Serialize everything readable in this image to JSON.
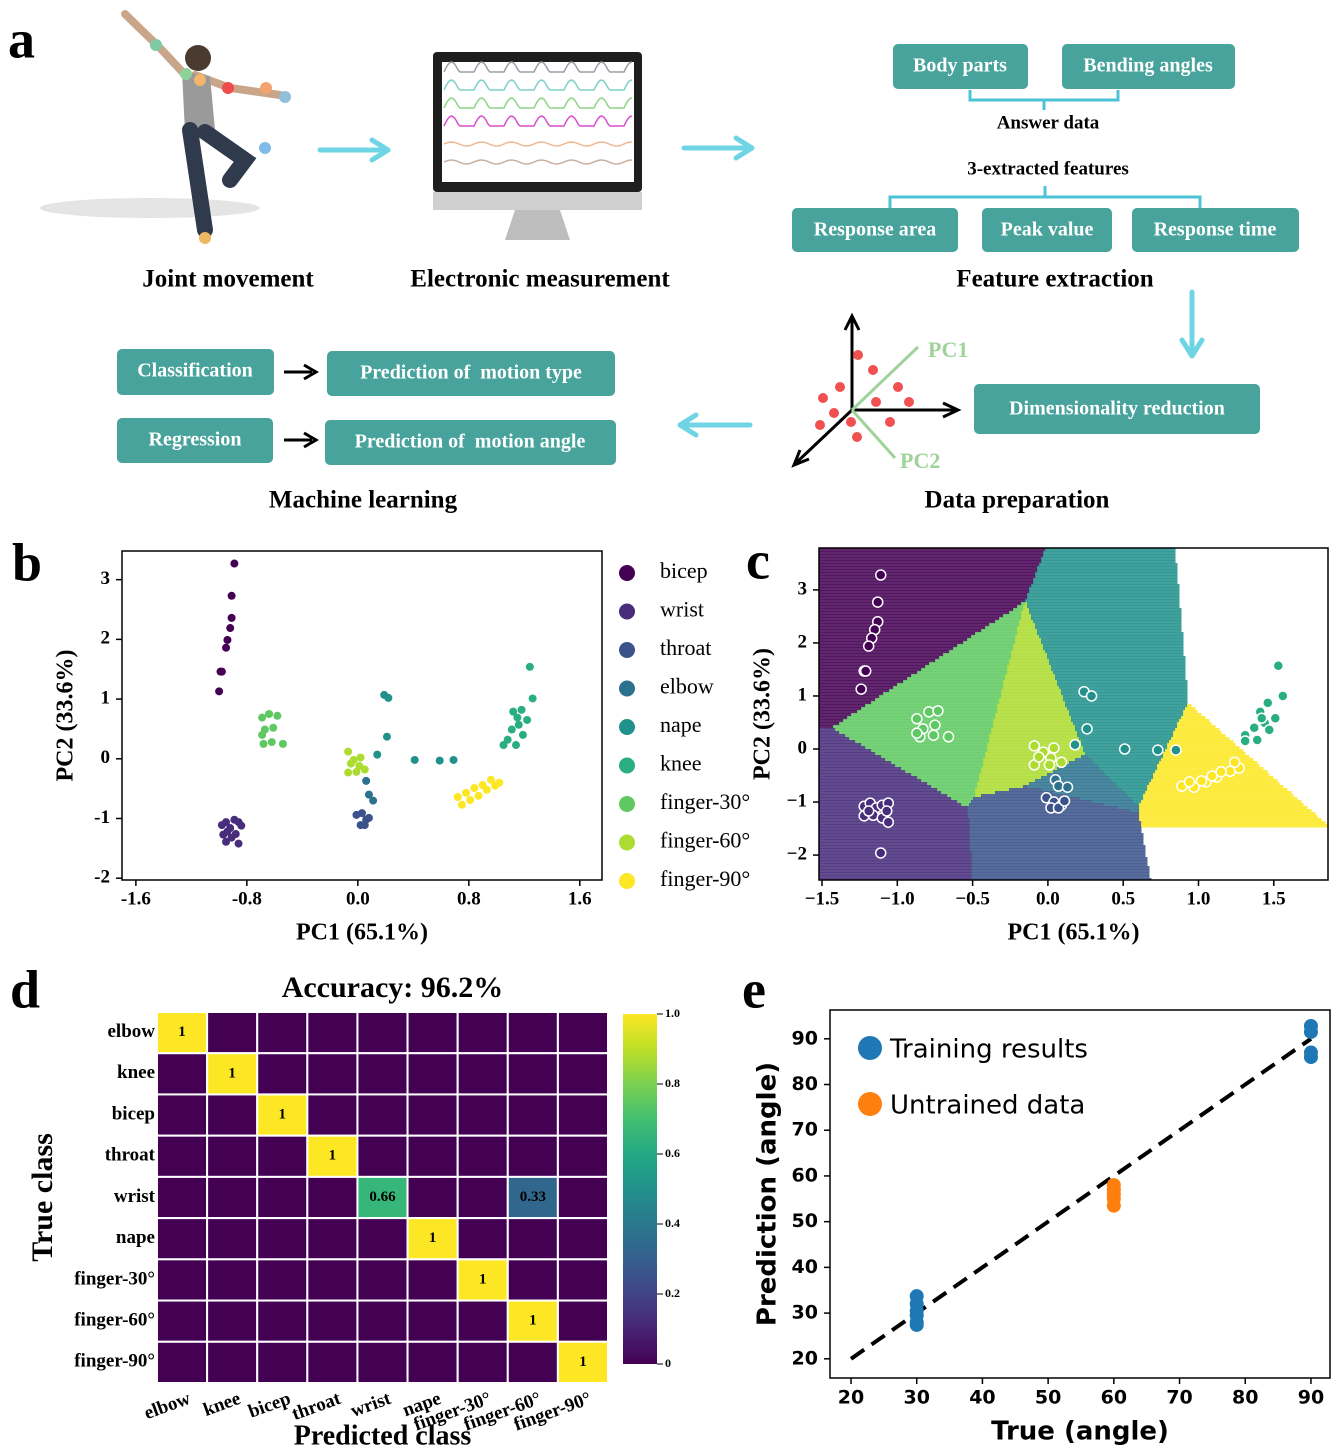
{
  "panel_labels": [
    "a",
    "b",
    "c",
    "d",
    "e"
  ],
  "diagram": {
    "steps": [
      "Joint movement",
      "Electronic measurement",
      "Feature extraction",
      "Data preparation",
      "Machine learning"
    ],
    "answer_boxes": [
      "Body parts",
      "Bending angles"
    ],
    "answer_label": "Answer data",
    "features_label": "3-extracted features",
    "feature_boxes": [
      "Response area",
      "Peak value",
      "Response time"
    ],
    "pca_axes": [
      "PC1",
      "PC2"
    ],
    "reduction_box": "Dimensionality reduction",
    "tasks": [
      {
        "task": "Classification",
        "output": "Prediction of  motion type"
      },
      {
        "task": "Regression",
        "output": "Prediction of  motion angle"
      }
    ]
  },
  "chart_data": [
    {
      "type": "scatter",
      "x_label": "PC1 (65.1%)",
      "y_label": "PC2 (33.6%)",
      "xlim": [
        -1.7,
        1.76
      ],
      "ylim": [
        -2.03,
        3.48
      ],
      "xticks": [
        -1.6,
        -0.8,
        {
          "value": 0,
          "label": "0.0"
        },
        0.8,
        1.6
      ],
      "yticks": [
        -2,
        -1,
        0,
        1,
        2,
        3
      ],
      "legend": "outside right",
      "series": [
        {
          "name": "bicep",
          "color": "#440154",
          "x": [
            -0.89,
            -0.91,
            -0.91,
            -0.92,
            -0.94,
            -0.95,
            -0.98,
            -0.99,
            -1.0
          ],
          "values": [
            3.27,
            2.73,
            2.36,
            2.19,
            1.99,
            1.86,
            1.46,
            1.46,
            1.13
          ]
        },
        {
          "name": "wrist",
          "color": "#472d7b",
          "x": [
            -0.98,
            -0.95,
            -0.92,
            -0.89,
            -0.86,
            -0.84,
            -0.97,
            -0.94,
            -0.91,
            -0.88,
            -0.86,
            -0.95
          ],
          "values": [
            -1.11,
            -1.06,
            -1.16,
            -1.02,
            -1.06,
            -1.12,
            -1.27,
            -1.22,
            -1.32,
            -1.26,
            -1.42,
            -1.39
          ]
        },
        {
          "name": "throat",
          "color": "#3b528b",
          "x": [
            -0.01,
            0.03,
            0.06,
            0.02,
            0.05,
            0.08
          ],
          "values": [
            -0.94,
            -0.91,
            -1.02,
            -1.11,
            -1.11,
            -0.99
          ]
        },
        {
          "name": "elbow",
          "color": "#2c728e",
          "x": [
            0.06,
            0.08,
            0.11
          ],
          "values": [
            -0.37,
            -0.6,
            -0.7
          ]
        },
        {
          "name": "nape",
          "color": "#21918c",
          "x": [
            0.14,
            0.19,
            0.22,
            0.21,
            0.41,
            0.59,
            0.69
          ],
          "values": [
            0.07,
            1.07,
            1.02,
            0.37,
            -0.02,
            -0.03,
            -0.02
          ]
        },
        {
          "name": "knee",
          "color": "#28ae80",
          "x": [
            1.24,
            1.26,
            1.18,
            1.12,
            1.22,
            1.16,
            1.11,
            1.19,
            1.08,
            1.14,
            1.05,
            1.15
          ],
          "values": [
            1.54,
            1.01,
            0.82,
            0.79,
            0.65,
            0.57,
            0.49,
            0.4,
            0.32,
            0.23,
            0.23,
            0.69
          ]
        },
        {
          "name": "finger-30°",
          "color": "#5ec962",
          "x": [
            -0.69,
            -0.64,
            -0.58,
            -0.67,
            -0.61,
            -0.68,
            -0.62,
            -0.54,
            -0.69
          ],
          "values": [
            0.69,
            0.75,
            0.72,
            0.49,
            0.52,
            0.25,
            0.28,
            0.25,
            0.4
          ]
        },
        {
          "name": "finger-60°",
          "color": "#addc30",
          "x": [
            -0.07,
            -0.03,
            0.01,
            -0.07,
            -0.01,
            0.05,
            -0.05,
            0.02
          ],
          "values": [
            0.12,
            -0.02,
            -0.12,
            -0.23,
            -0.22,
            -0.18,
            -0.08,
            0.02
          ]
        },
        {
          "name": "finger-90°",
          "color": "#fde725",
          "x": [
            0.72,
            0.78,
            0.84,
            0.9,
            0.96,
            1.02,
            0.75,
            0.81,
            0.87,
            0.93,
            0.99
          ],
          "values": [
            -0.64,
            -0.57,
            -0.49,
            -0.44,
            -0.35,
            -0.4,
            -0.77,
            -0.69,
            -0.62,
            -0.52,
            -0.45
          ]
        }
      ]
    },
    {
      "type": "scatter",
      "x_label": "PC1 (65.1%)",
      "y_label": "PC2 (33.6%)",
      "xlim": [
        -1.52,
        1.86
      ],
      "ylim": [
        -2.47,
        3.79
      ],
      "xticks": [
        {
          "value": -1.5,
          "label": "−1.5"
        },
        {
          "value": -1,
          "label": "−1.0"
        },
        {
          "value": -0.5,
          "label": "−0.5"
        },
        {
          "value": 0,
          "label": "0.0"
        },
        0.5,
        {
          "value": 1,
          "label": "1.0"
        },
        1.5
      ],
      "yticks": [
        {
          "value": -2,
          "label": "−2"
        },
        {
          "value": -1,
          "label": "−1"
        },
        0,
        1,
        2,
        3
      ],
      "decision_regions": true,
      "marker_edge": "#ffffff",
      "series": [
        {
          "color": "#440154",
          "x": [
            -1.11,
            -1.13,
            -1.13,
            -1.15,
            -1.17,
            -1.19,
            -1.22,
            -1.21,
            -1.24
          ],
          "values": [
            3.28,
            2.77,
            2.4,
            2.25,
            2.09,
            1.94,
            1.47,
            1.47,
            1.13
          ]
        },
        {
          "color": "#472d7b",
          "x": [
            -1.22,
            -1.18,
            -1.14,
            -1.1,
            -1.06,
            -1.22,
            -1.16,
            -1.1,
            -1.06,
            -1.11,
            -1.19,
            -1.07
          ],
          "values": [
            -1.08,
            -1.02,
            -1.11,
            -1.06,
            -1.02,
            -1.26,
            -1.25,
            -1.3,
            -1.38,
            -1.96,
            -1.17,
            -1.17
          ]
        },
        {
          "color": "#3b528b",
          "x": [
            -0.01,
            0.04,
            0.09,
            0.02,
            0.07,
            0.11
          ],
          "values": [
            -0.92,
            -1.0,
            -1.06,
            -1.11,
            -1.11,
            -0.98
          ]
        },
        {
          "color": "#2c728e",
          "x": [
            0.05,
            0.07,
            0.13
          ],
          "values": [
            -0.58,
            -0.7,
            -0.72
          ]
        },
        {
          "color": "#21918c",
          "x": [
            0.18,
            0.24,
            0.29,
            0.26,
            0.51,
            0.73,
            0.85
          ],
          "values": [
            0.08,
            1.08,
            1.0,
            0.38,
            0.0,
            -0.02,
            -0.02
          ]
        },
        {
          "color": "#28ae80",
          "x": [
            1.53,
            1.56,
            1.46,
            1.41,
            1.51,
            1.44,
            1.37,
            1.47,
            1.31,
            1.39,
            1.31,
            1.42
          ],
          "values": [
            1.57,
            1.0,
            0.87,
            0.7,
            0.58,
            0.49,
            0.4,
            0.36,
            0.26,
            0.17,
            0.15,
            0.58
          ]
        },
        {
          "color": "#5ec962",
          "x": [
            -0.87,
            -0.79,
            -0.73,
            -0.83,
            -0.75,
            -0.85,
            -0.76,
            -0.66,
            -0.87
          ],
          "values": [
            0.57,
            0.7,
            0.72,
            0.38,
            0.45,
            0.23,
            0.26,
            0.23,
            0.3
          ]
        },
        {
          "color": "#addc30",
          "x": [
            -0.09,
            -0.03,
            0.02,
            -0.09,
            0.01,
            0.09,
            -0.06,
            0.04
          ],
          "values": [
            0.06,
            -0.06,
            -0.17,
            -0.3,
            -0.3,
            -0.25,
            -0.15,
            0.02
          ]
        },
        {
          "color": "#fde725",
          "x": [
            0.89,
            0.97,
            1.05,
            1.12,
            1.21,
            1.27,
            0.94,
            1.02,
            1.09,
            1.15,
            1.24
          ],
          "values": [
            -0.7,
            -0.72,
            -0.62,
            -0.53,
            -0.42,
            -0.36,
            -0.62,
            -0.6,
            -0.51,
            -0.43,
            -0.25
          ]
        }
      ]
    },
    {
      "type": "heatmap",
      "title": "Accuracy: 96.2%",
      "x_label": "Predicted class",
      "y_label": "True class",
      "colormap": "viridis",
      "clim": [
        0,
        1
      ],
      "cticks": [
        0,
        0.2,
        0.4,
        0.6,
        0.8,
        {
          "value": 1,
          "label": "1.0"
        }
      ],
      "x_categories": [
        "elbow",
        "knee",
        "bicep",
        "throat",
        "wrist",
        "nape",
        "finger-30°",
        "finger-60°",
        "finger-90°"
      ],
      "y_categories": [
        "elbow",
        "knee",
        "bicep",
        "throat",
        "wrist",
        "nape",
        "finger-30°",
        "finger-60°",
        "finger-90°"
      ],
      "values": [
        [
          1,
          0,
          0,
          0,
          0,
          0,
          0,
          0,
          0
        ],
        [
          0,
          1,
          0,
          0,
          0,
          0,
          0,
          0,
          0
        ],
        [
          0,
          0,
          1,
          0,
          0,
          0,
          0,
          0,
          0
        ],
        [
          0,
          0,
          0,
          1,
          0,
          0,
          0,
          0,
          0
        ],
        [
          0,
          0,
          0,
          0,
          0.66,
          0,
          0,
          0.33,
          0
        ],
        [
          0,
          0,
          0,
          0,
          0,
          1,
          0,
          0,
          0
        ],
        [
          0,
          0,
          0,
          0,
          0,
          0,
          1,
          0,
          0
        ],
        [
          0,
          0,
          0,
          0,
          0,
          0,
          0,
          1,
          0
        ],
        [
          0,
          0,
          0,
          0,
          0,
          0,
          0,
          0,
          1
        ]
      ]
    },
    {
      "type": "scatter",
      "x_label": "True (angle)",
      "y_label": "Prediction (angle)",
      "xlim": [
        16.8,
        92.9
      ],
      "ylim": [
        15.8,
        96.3
      ],
      "xticks": [
        20,
        30,
        40,
        50,
        60,
        70,
        80,
        90
      ],
      "yticks": [
        20,
        30,
        40,
        50,
        60,
        70,
        80,
        90
      ],
      "legend": "upper left",
      "reference_line": {
        "x": [
          20,
          90
        ],
        "y": [
          20,
          90
        ],
        "color": "#000000",
        "style": "dashed"
      },
      "series": [
        {
          "name": "Training results",
          "color": "#1f77b4",
          "x": [
            30,
            30,
            30,
            30,
            30,
            30,
            90,
            90,
            90,
            90
          ],
          "values": [
            33.7,
            32,
            30.5,
            29.5,
            28,
            27.4,
            92.8,
            91.5,
            87,
            86
          ]
        },
        {
          "name": "Untrained data",
          "color": "#ff7f0e",
          "x": [
            60,
            60,
            60,
            60,
            60
          ],
          "values": [
            58,
            57,
            56,
            55,
            53.5
          ]
        }
      ]
    }
  ]
}
